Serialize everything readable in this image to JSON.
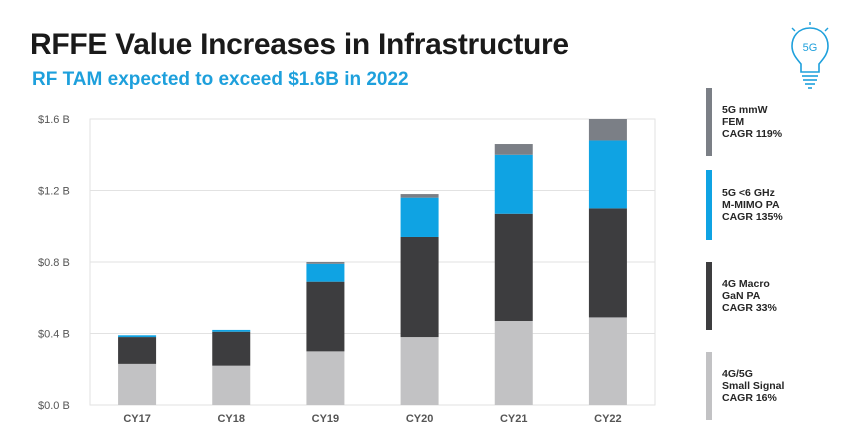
{
  "header": {
    "title": "RFFE Value Increases in Infrastructure",
    "subtitle": "RF TAM expected to exceed $1.6B in 2022",
    "icon_text": "5G"
  },
  "colors": {
    "small_signal": "#c2c2c4",
    "gan_pa": "#3d3d3f",
    "mimo_pa": "#0fa3e3",
    "mmw_fem": "#7b7f86",
    "grid": "#e2e2e2",
    "axis_text": "#555555",
    "accent": "#1ea0dc"
  },
  "legend": [
    {
      "label": "5G mmW\nFEM\nCAGR 119%",
      "color": "#7b7f86"
    },
    {
      "label": "5G <6 GHz\nM-MIMO PA\nCAGR 135%",
      "color": "#0fa3e3"
    },
    {
      "label": "4G Macro\nGaN PA\nCAGR 33%",
      "color": "#3d3d3f"
    },
    {
      "label": "4G/5G\nSmall Signal\nCAGR 16%",
      "color": "#c2c2c4"
    }
  ],
  "chart_data": {
    "type": "bar",
    "stacked": true,
    "title": "RFFE Value Increases in Infrastructure",
    "subtitle": "RF TAM expected to exceed $1.6B in 2022",
    "xlabel": "",
    "ylabel": "",
    "categories": [
      "CY17",
      "CY18",
      "CY19",
      "CY20",
      "CY21",
      "CY22"
    ],
    "y_ticks": [
      "$0.0 B",
      "$0.4 B",
      "$0.8 B",
      "$1.2 B",
      "$1.6 B"
    ],
    "y_tick_values": [
      0,
      0.4,
      0.8,
      1.2,
      1.6
    ],
    "ylim": [
      0,
      1.6
    ],
    "grid": true,
    "legend_position": "right",
    "series": [
      {
        "name": "4G/5G Small Signal CAGR 16%",
        "color": "#c2c2c4",
        "values": [
          0.23,
          0.22,
          0.3,
          0.38,
          0.47,
          0.49
        ]
      },
      {
        "name": "4G Macro GaN PA CAGR 33%",
        "color": "#3d3d3f",
        "values": [
          0.15,
          0.19,
          0.39,
          0.56,
          0.6,
          0.61
        ]
      },
      {
        "name": "5G <6 GHz M-MIMO PA CAGR 135%",
        "color": "#0fa3e3",
        "values": [
          0.01,
          0.01,
          0.1,
          0.22,
          0.33,
          0.38
        ]
      },
      {
        "name": "5G mmW FEM CAGR 119%",
        "color": "#7b7f86",
        "values": [
          0.0,
          0.0,
          0.01,
          0.02,
          0.06,
          0.12
        ]
      }
    ]
  }
}
